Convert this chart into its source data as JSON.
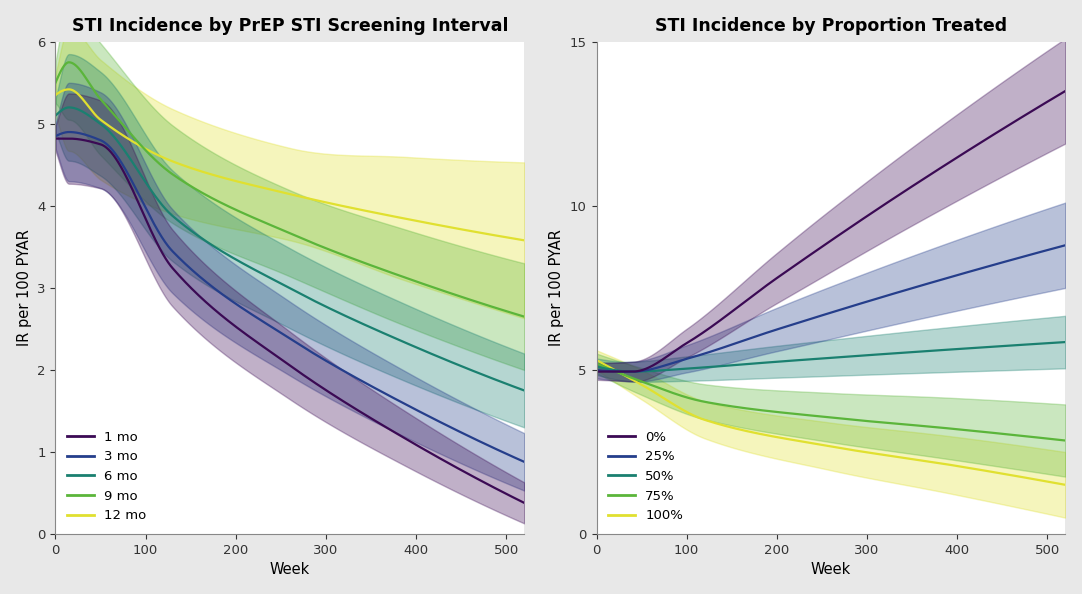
{
  "panel1": {
    "title": "STI Incidence by PrEP STI Screening Interval",
    "ylabel": "IR per 100 PYAR",
    "xlabel": "Week",
    "xlim": [
      0,
      520
    ],
    "ylim": [
      0,
      6
    ],
    "yticks": [
      0,
      1,
      2,
      3,
      4,
      5,
      6
    ],
    "xticks": [
      0,
      100,
      200,
      300,
      400,
      500
    ],
    "series": [
      {
        "label": "1 mo",
        "color": "#3B0A54",
        "init_val": 4.82,
        "peak_val": 4.82,
        "peak_week": 15,
        "trough_val": 4.75,
        "trough_week": 50,
        "end_val": 0.38,
        "ci_start": 0.15,
        "ci_mid": 0.55,
        "ci_end": 0.25
      },
      {
        "label": "3 mo",
        "color": "#253E8B",
        "init_val": 4.85,
        "peak_val": 4.9,
        "peak_week": 15,
        "trough_val": 4.8,
        "trough_week": 50,
        "end_val": 0.88,
        "ci_start": 0.15,
        "ci_mid": 0.6,
        "ci_end": 0.35
      },
      {
        "label": "6 mo",
        "color": "#1A8070",
        "init_val": 5.1,
        "peak_val": 5.2,
        "peak_week": 15,
        "trough_val": 5.0,
        "trough_week": 50,
        "end_val": 1.75,
        "ci_start": 0.2,
        "ci_mid": 0.65,
        "ci_end": 0.45
      },
      {
        "label": "9 mo",
        "color": "#5BB53A",
        "init_val": 5.5,
        "peak_val": 5.75,
        "peak_week": 15,
        "trough_val": 5.3,
        "trough_week": 50,
        "end_val": 2.65,
        "ci_start": 0.25,
        "ci_mid": 0.7,
        "ci_end": 0.65
      },
      {
        "label": "12 mo",
        "color": "#E0E030",
        "init_val": 5.35,
        "peak_val": 5.42,
        "peak_week": 15,
        "trough_val": 5.05,
        "trough_week": 50,
        "end_val": 3.58,
        "ci_start": 0.25,
        "ci_mid": 0.75,
        "ci_end": 0.95
      }
    ]
  },
  "panel2": {
    "title": "STI Incidence by Proportion Treated",
    "ylabel": "IR per 100 PYAR",
    "xlabel": "Week",
    "xlim": [
      0,
      520
    ],
    "ylim": [
      0,
      15
    ],
    "yticks": [
      0,
      5,
      10,
      15
    ],
    "xticks": [
      0,
      100,
      200,
      300,
      400,
      500
    ],
    "series": [
      {
        "label": "0%",
        "color": "#3B0A54",
        "init_val": 4.95,
        "dip_val": 4.95,
        "dip_week": 40,
        "end_val": 13.5,
        "ci_start": 0.25,
        "ci_dip": 0.3,
        "ci_end": 1.6
      },
      {
        "label": "25%",
        "color": "#253E8B",
        "init_val": 5.0,
        "dip_val": 4.95,
        "dip_week": 40,
        "end_val": 8.8,
        "ci_start": 0.25,
        "ci_dip": 0.3,
        "ci_end": 1.3
      },
      {
        "label": "50%",
        "color": "#1A8070",
        "init_val": 5.1,
        "dip_val": 4.95,
        "dip_week": 40,
        "end_val": 5.85,
        "ci_start": 0.25,
        "ci_dip": 0.3,
        "ci_end": 0.8
      },
      {
        "label": "75%",
        "color": "#5BB53A",
        "init_val": 5.2,
        "dip_val": 4.7,
        "dip_week": 45,
        "end_val": 2.85,
        "ci_start": 0.3,
        "ci_dip": 0.4,
        "ci_end": 1.1
      },
      {
        "label": "100%",
        "color": "#E0E030",
        "init_val": 5.3,
        "dip_val": 4.55,
        "dip_week": 50,
        "end_val": 1.5,
        "ci_start": 0.3,
        "ci_dip": 0.45,
        "ci_end": 1.0
      }
    ]
  },
  "bg_color": "#e8e8e8",
  "plot_bg": "#ffffff",
  "title_fontsize": 12.5,
  "label_fontsize": 10.5,
  "tick_fontsize": 9.5,
  "legend_fontsize": 9.5,
  "ci_alpha": 0.32,
  "line_width": 1.6
}
